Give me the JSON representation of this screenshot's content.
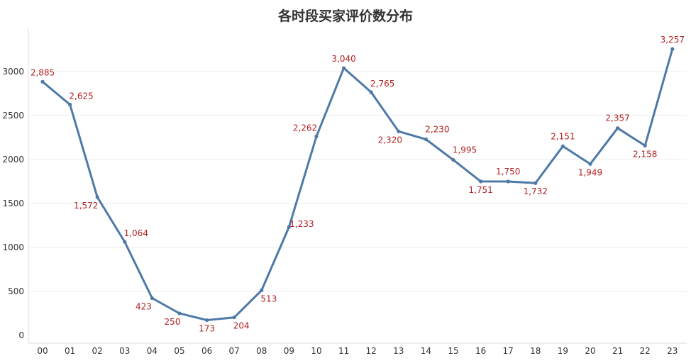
{
  "chart_data": {
    "type": "line",
    "title": "各时段买家评价数分布",
    "xlabel": "",
    "ylabel": "",
    "categories": [
      "00",
      "01",
      "02",
      "03",
      "04",
      "05",
      "06",
      "07",
      "08",
      "09",
      "10",
      "11",
      "12",
      "13",
      "14",
      "15",
      "16",
      "17",
      "18",
      "19",
      "20",
      "21",
      "22",
      "23"
    ],
    "values": [
      2885,
      2625,
      1572,
      1064,
      423,
      250,
      173,
      204,
      513,
      1233,
      2262,
      3040,
      2765,
      2320,
      2230,
      1995,
      1751,
      1750,
      1732,
      2151,
      1949,
      2357,
      2158,
      3257
    ],
    "data_labels": [
      "2,885",
      "2,625",
      "1,572",
      "1,064",
      "423",
      "250",
      "173",
      "204",
      "513",
      "1,233",
      "2,262",
      "3,040",
      "2,765",
      "2,320",
      "2,230",
      "1,995",
      "1,751",
      "1,750",
      "1,732",
      "2,151",
      "1,949",
      "2,357",
      "2,158",
      "3,257"
    ],
    "yticks": [
      "0",
      "500",
      "1000",
      "1500",
      "2000",
      "2500",
      "3000"
    ],
    "ylim": [
      0,
      3350
    ],
    "grid": true,
    "colors": {
      "line": "#4e79a7",
      "label": "#b22222",
      "grid": "#ececec"
    }
  }
}
